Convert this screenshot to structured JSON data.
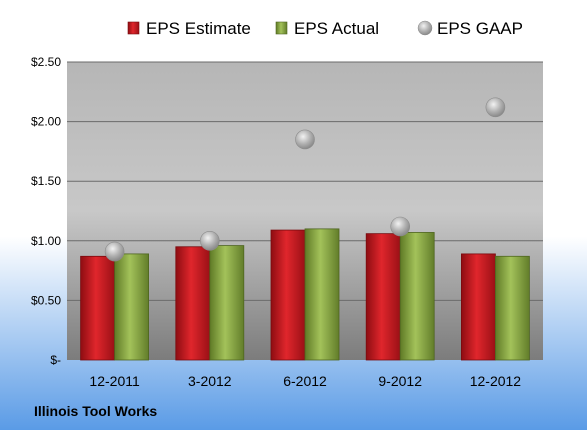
{
  "chart_data": {
    "type": "bar",
    "categories": [
      "12-2011",
      "3-2012",
      "6-2012",
      "9-2012",
      "12-2012"
    ],
    "series": [
      {
        "name": "EPS Estimate",
        "kind": "bar",
        "color": "#c0181e",
        "values": [
          0.87,
          0.95,
          1.09,
          1.06,
          0.89
        ]
      },
      {
        "name": "EPS Actual",
        "kind": "bar",
        "color": "#8aa640",
        "values": [
          0.89,
          0.96,
          1.1,
          1.07,
          0.87
        ]
      },
      {
        "name": "EPS GAAP",
        "kind": "scatter",
        "color": "#a8a8a8",
        "values": [
          0.91,
          1.0,
          1.85,
          1.12,
          2.12
        ]
      }
    ],
    "y_ticks": [
      "$-",
      "$0.50",
      "$1.00",
      "$1.50",
      "$2.00",
      "$2.50"
    ],
    "ylim": [
      0,
      2.5
    ],
    "legend_position": "top",
    "grid": true,
    "title": "",
    "xlabel": "",
    "ylabel": ""
  },
  "footer": {
    "company": "Illinois Tool Works"
  },
  "colors": {
    "background_top": "#ffffff",
    "background_bottom": "#5a9be6",
    "plot_top": "#b4b4b4",
    "plot_bottom": "#7e7e7e"
  }
}
